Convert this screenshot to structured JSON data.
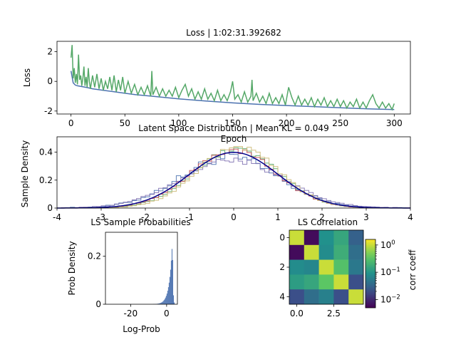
{
  "chart_data": [
    {
      "type": "line",
      "title": "Loss | 1:02:31.392682",
      "xlabel": "Epoch",
      "ylabel": "Loss",
      "xlim": [
        -13,
        315
      ],
      "ylim": [
        -2.2,
        2.7
      ],
      "xticks": [
        0,
        50,
        100,
        150,
        200,
        250,
        300
      ],
      "yticks": [
        -2,
        0,
        2
      ],
      "grid": false,
      "series": [
        {
          "color": "#4c72b0",
          "x": [
            0,
            2,
            4,
            6,
            10,
            15,
            20,
            30,
            40,
            50,
            60,
            75,
            100,
            125,
            150,
            175,
            200,
            225,
            250,
            275,
            300
          ],
          "y": [
            0.7,
            -0.1,
            -0.25,
            -0.3,
            -0.35,
            -0.42,
            -0.5,
            -0.6,
            -0.7,
            -0.8,
            -0.9,
            -1.0,
            -1.18,
            -1.32,
            -1.45,
            -1.55,
            -1.63,
            -1.7,
            -1.78,
            -1.85,
            -1.9
          ]
        },
        {
          "color": "#55a868",
          "x": [
            0,
            1,
            2,
            3,
            4,
            5,
            6,
            7,
            8,
            9,
            10,
            11,
            12,
            13,
            14,
            15,
            16,
            17,
            18,
            20,
            22,
            24,
            26,
            28,
            30,
            32,
            34,
            36,
            38,
            40,
            42,
            44,
            46,
            48,
            50,
            53,
            56,
            59,
            62,
            65,
            68,
            71,
            74,
            75,
            76,
            79,
            82,
            85,
            88,
            91,
            94,
            97,
            100,
            103,
            106,
            109,
            112,
            115,
            118,
            121,
            124,
            127,
            130,
            133,
            136,
            139,
            142,
            145,
            148,
            150,
            152,
            155,
            158,
            161,
            164,
            167,
            168,
            169,
            172,
            175,
            178,
            181,
            184,
            187,
            190,
            193,
            196,
            199,
            202,
            205,
            208,
            211,
            214,
            217,
            220,
            223,
            226,
            229,
            232,
            235,
            238,
            241,
            244,
            247,
            250,
            253,
            256,
            259,
            262,
            265,
            268,
            271,
            274,
            277,
            280,
            283,
            286,
            289,
            292,
            295,
            298,
            300
          ],
          "y": [
            1.6,
            2.45,
            0.2,
            0.9,
            -0.1,
            0.5,
            -0.2,
            1.8,
            0.1,
            0.4,
            -0.3,
            0.2,
            1.0,
            -0.3,
            0.3,
            -0.4,
            0.9,
            0.0,
            -0.5,
            0.4,
            -0.4,
            0.5,
            -0.5,
            0.2,
            -0.6,
            0.0,
            -0.5,
            0.3,
            -0.6,
            0.4,
            -0.7,
            0.1,
            -0.6,
            0.3,
            -0.8,
            0.0,
            -0.8,
            -0.2,
            -0.9,
            -0.4,
            -0.9,
            -0.3,
            -1.0,
            0.7,
            -0.9,
            -0.4,
            -1.0,
            -0.5,
            -1.0,
            -0.6,
            -1.0,
            -0.4,
            -1.1,
            -0.6,
            -0.2,
            -1.0,
            -0.5,
            -1.2,
            -0.7,
            -1.2,
            -0.5,
            -1.2,
            -0.8,
            -1.3,
            -0.6,
            -1.3,
            -0.9,
            -1.3,
            -0.7,
            0.0,
            -1.2,
            -0.9,
            -1.4,
            -0.7,
            -1.4,
            -1.0,
            0.1,
            -1.3,
            -0.8,
            -1.4,
            -1.0,
            -1.5,
            -0.8,
            -1.5,
            -1.1,
            -1.5,
            -0.9,
            -1.6,
            -0.4,
            -1.1,
            -1.6,
            -1.0,
            -1.6,
            -1.2,
            -1.6,
            -1.1,
            -1.7,
            -1.2,
            -1.6,
            -1.1,
            -1.7,
            -1.3,
            -1.7,
            -1.2,
            -1.7,
            -1.3,
            -1.8,
            -1.4,
            -1.7,
            -1.2,
            -1.8,
            -1.4,
            -1.8,
            -1.3,
            -0.9,
            -1.5,
            -1.8,
            -1.4,
            -1.8,
            -1.5,
            -1.9,
            -1.5
          ]
        }
      ]
    },
    {
      "type": "line",
      "title": "Latent Space Distribution | Mean KL = 0.049",
      "xlabel": "",
      "ylabel": "Sample Density",
      "xlim": [
        -4,
        4
      ],
      "ylim": [
        0,
        0.51
      ],
      "xticks": [
        -4,
        -3,
        -2,
        -1,
        0,
        1,
        2,
        3,
        4
      ],
      "yticks": [
        0.0,
        0.2,
        0.4
      ],
      "grid": false,
      "reference": {
        "color": "#00008b",
        "mean": 0,
        "std": 1
      },
      "histograms": [
        {
          "color": "#4c72b0",
          "mean": -0.1,
          "std": 1.1,
          "noise": 0.035
        },
        {
          "color": "#55a868",
          "mean": 0.05,
          "std": 0.95,
          "noise": 0.02
        },
        {
          "color": "#c44e52",
          "mean": 0.0,
          "std": 0.97,
          "noise": 0.02
        },
        {
          "color": "#8172b2",
          "mean": -0.05,
          "std": 1.15,
          "noise": 0.025
        },
        {
          "color": "#ccb974",
          "mean": 0.1,
          "std": 0.92,
          "noise": 0.02
        }
      ]
    },
    {
      "type": "bar",
      "title": "LS Sample Probabilities",
      "xlabel": "Log-Prob",
      "ylabel": "Prob Density",
      "xlim": [
        -34,
        6
      ],
      "ylim": [
        0,
        0.3
      ],
      "xticks": [
        -20,
        0
      ],
      "yticks": [
        0.0,
        0.2
      ],
      "color": "#4c72b0",
      "grid": false
    },
    {
      "type": "heatmap",
      "title": "LS Correlation",
      "xlabel": "",
      "ylabel": "",
      "xticks": [
        0.0,
        2.5
      ],
      "yticks": [
        0,
        2,
        4
      ],
      "colorbar_label": "corr coeff",
      "colorbar_scale": "log",
      "colorbar_ticks": [
        {
          "value": 1,
          "base": "10",
          "exp": "0"
        },
        {
          "value": 0.1,
          "base": "10",
          "exp": "−1"
        },
        {
          "value": 0.01,
          "base": "10",
          "exp": "−2"
        }
      ],
      "clim": [
        0.005,
        1.6
      ],
      "values": [
        [
          1.0,
          0.006,
          0.09,
          0.15,
          0.03
        ],
        [
          0.006,
          1.0,
          0.08,
          0.18,
          0.04
        ],
        [
          0.08,
          0.07,
          1.0,
          0.3,
          0.05
        ],
        [
          0.12,
          0.15,
          0.35,
          1.0,
          0.02
        ],
        [
          0.02,
          0.04,
          0.06,
          0.02,
          1.0
        ]
      ]
    }
  ]
}
